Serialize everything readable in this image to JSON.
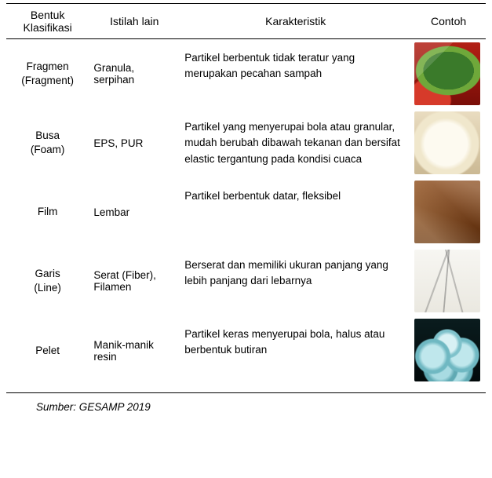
{
  "table": {
    "headers": {
      "col1_line1": "Bentuk",
      "col1_line2": "Klasifikasi",
      "col2": "Istilah lain",
      "col3": "Karakteristik",
      "col4": "Contoh"
    },
    "rows": [
      {
        "name_line1": "Fragmen",
        "name_line2": "(Fragment)",
        "alias_line1": "Granula,",
        "alias_line2": "serpihan",
        "char": "Partikel berbentuk tidak teratur yang merupakan pecahan sampah",
        "thumb_class": "img-fragment",
        "thumb_name": "fragment-sample-image"
      },
      {
        "name_line1": "Busa",
        "name_line2": "(Foam)",
        "alias_line1": "EPS, PUR",
        "alias_line2": "",
        "char": "Partikel yang menyerupai bola atau granular, mudah berubah dibawah tekanan dan bersifat elastic tergantung pada kondisi cuaca",
        "thumb_class": "img-foam",
        "thumb_name": "foam-sample-image"
      },
      {
        "name_line1": "Film",
        "name_line2": "",
        "alias_line1": "Lembar",
        "alias_line2": "",
        "char": "Partikel berbentuk datar, fleksibel",
        "thumb_class": "img-film",
        "thumb_name": "film-sample-image"
      },
      {
        "name_line1": "Garis",
        "name_line2": "(Line)",
        "alias_line1": "Serat (Fiber),",
        "alias_line2": "Filamen",
        "char": "Berserat dan memiliki ukuran panjang yang lebih panjang dari lebarnya",
        "thumb_class": "img-line",
        "thumb_name": "line-sample-image"
      },
      {
        "name_line1": "Pelet",
        "name_line2": "",
        "alias_line1": "Manik-manik",
        "alias_line2": "resin",
        "char": "Partikel keras menyerupai bola, halus atau berbentuk butiran",
        "thumb_class": "img-pellet",
        "thumb_name": "pellet-sample-image"
      }
    ],
    "source": "Sumber: GESAMP 2019"
  }
}
